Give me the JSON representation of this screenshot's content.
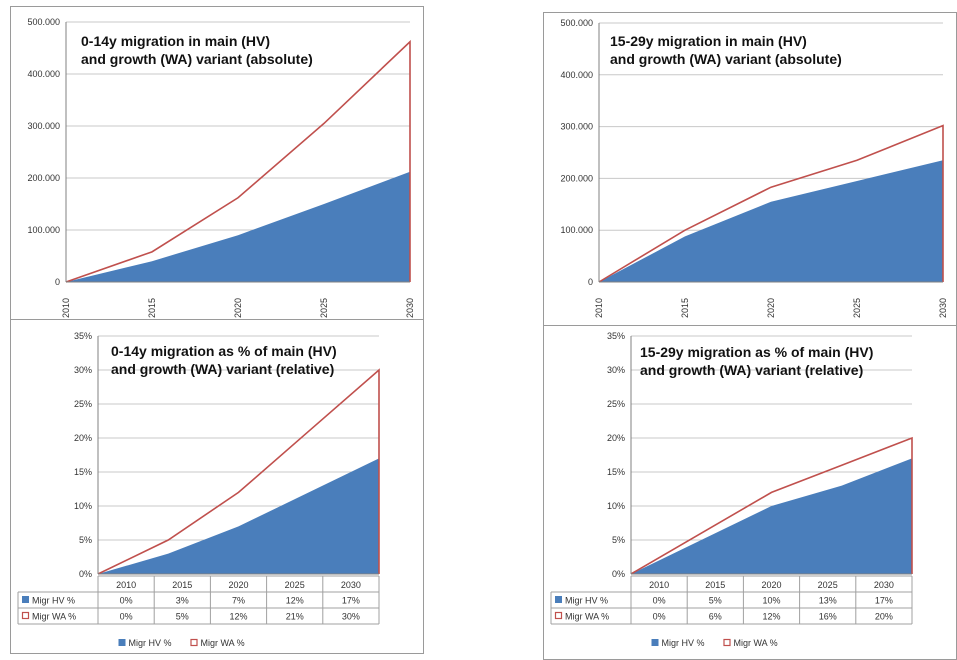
{
  "legend_labels": {
    "hv": "Migr HV %",
    "wa": "Migr WA %"
  },
  "colors": {
    "hv_fill": "#4a7ebb",
    "wa_line": "#c0504d",
    "grid": "#c8c8c8",
    "axis": "#808080"
  },
  "chart_data": [
    {
      "type": "area",
      "title_lines": [
        "0-14y migration in main (HV)",
        "and growth (WA) variant (absolute)"
      ],
      "x": [
        "2010",
        "2015",
        "2020",
        "2025",
        "2030"
      ],
      "yticks": [
        "0",
        "100.000",
        "200.000",
        "300.000",
        "400.000",
        "500.000"
      ],
      "ylim": [
        0,
        500000
      ],
      "grid": true,
      "series": [
        {
          "values": [
            0,
            40000,
            90000,
            150000,
            212000
          ],
          "style": "filled-area"
        },
        {
          "values": [
            0,
            58000,
            162000,
            305000,
            462000
          ],
          "style": "line"
        }
      ]
    },
    {
      "type": "area",
      "title_lines": [
        "15-29y migration in main (HV)",
        "and growth (WA) variant (absolute)"
      ],
      "x": [
        "2010",
        "2015",
        "2020",
        "2025",
        "2030"
      ],
      "yticks": [
        "0",
        "100.000",
        "200.000",
        "300.000",
        "400.000",
        "500.000"
      ],
      "ylim": [
        0,
        500000
      ],
      "grid": true,
      "series": [
        {
          "values": [
            0,
            88000,
            155000,
            195000,
            235000
          ],
          "style": "filled-area"
        },
        {
          "values": [
            0,
            100000,
            183000,
            235000,
            302000
          ],
          "style": "line"
        }
      ]
    },
    {
      "type": "area",
      "title_lines": [
        "0-14y migration as % of main (HV)",
        "and growth (WA) variant (relative)"
      ],
      "x": [
        "2010",
        "2015",
        "2020",
        "2025",
        "2030"
      ],
      "yticks": [
        "0%",
        "5%",
        "10%",
        "15%",
        "20%",
        "25%",
        "30%",
        "35%"
      ],
      "ylim": [
        0,
        35
      ],
      "grid": true,
      "legend_position": "bottom",
      "series": [
        {
          "name": "Migr HV %",
          "values": [
            0,
            3,
            7,
            12,
            17
          ],
          "labels": [
            "0%",
            "3%",
            "7%",
            "12%",
            "17%"
          ],
          "style": "filled-area"
        },
        {
          "name": "Migr WA %",
          "values": [
            0,
            5,
            12,
            21,
            30
          ],
          "labels": [
            "0%",
            "5%",
            "12%",
            "21%",
            "30%"
          ],
          "style": "line"
        }
      ]
    },
    {
      "type": "area",
      "title_lines": [
        "15-29y migration as % of main (HV)",
        "and growth (WA) variant (relative)"
      ],
      "x": [
        "2010",
        "2015",
        "2020",
        "2025",
        "2030"
      ],
      "yticks": [
        "0%",
        "5%",
        "10%",
        "15%",
        "20%",
        "25%",
        "30%",
        "35%"
      ],
      "ylim": [
        0,
        35
      ],
      "grid": true,
      "legend_position": "bottom",
      "series": [
        {
          "name": "Migr HV %",
          "values": [
            0,
            5,
            10,
            13,
            17
          ],
          "labels": [
            "0%",
            "5%",
            "10%",
            "13%",
            "17%"
          ],
          "style": "filled-area"
        },
        {
          "name": "Migr WA %",
          "values": [
            0,
            6,
            12,
            16,
            20
          ],
          "labels": [
            "0%",
            "6%",
            "12%",
            "16%",
            "20%"
          ],
          "style": "line"
        }
      ]
    }
  ]
}
